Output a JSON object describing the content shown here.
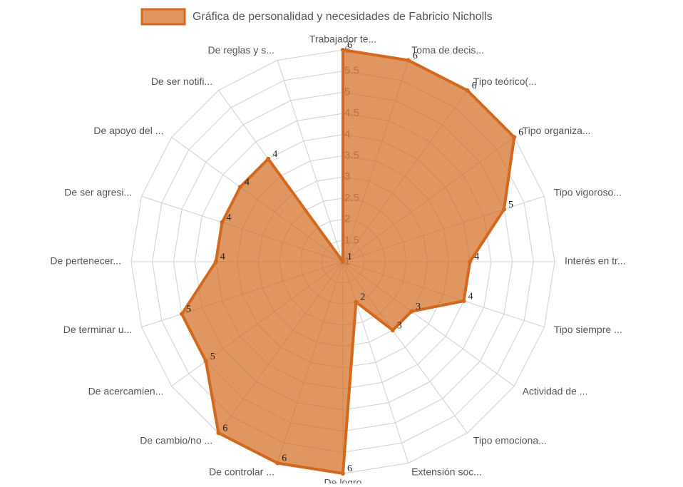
{
  "chart_data": {
    "type": "radar",
    "series": [
      {
        "name": "Gráfica de personalidad y necesidades de Fabricio Nicholls",
        "color": "#d2691e",
        "values": [
          6,
          6,
          6,
          6,
          5,
          4,
          4,
          3,
          3,
          2,
          6,
          6,
          6,
          5,
          5,
          4,
          4,
          4,
          4,
          1
        ]
      }
    ],
    "categories": [
      "Trabajador te...",
      "Toma de decis...",
      "Tipo teórico(...",
      "Tipo organiza...",
      "Tipo vigoroso...",
      "Interés en tr...",
      "Tipo siempre ...",
      "Actividad de ...",
      "Tipo emociona...",
      "Extensión soc...",
      "De logro",
      "De controlar ...",
      "De cambio/no ...",
      "De acercamien...",
      "De terminar u...",
      "De pertenecer...",
      "De ser agresi...",
      "De apoyo del ...",
      "De ser notifi...",
      "De reglas y s..."
    ],
    "ylim": [
      1,
      6
    ],
    "yticks": [
      1,
      1.5,
      2,
      2.5,
      3,
      3.5,
      4,
      4.5,
      5,
      5.5,
      6
    ],
    "grid": true
  }
}
